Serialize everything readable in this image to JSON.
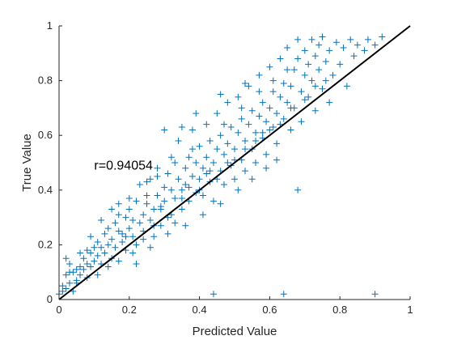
{
  "chart_data": {
    "type": "scatter",
    "title": "",
    "xlabel": "Predicted Value",
    "ylabel": "True Value",
    "xlim": [
      0,
      1
    ],
    "ylim": [
      0,
      1
    ],
    "xticks": [
      0,
      0.2,
      0.4,
      0.6,
      0.8,
      1
    ],
    "xtick_labels": [
      "0",
      "0.2",
      "0.4",
      "0.6",
      "0.8",
      "1"
    ],
    "yticks": [
      0,
      0.2,
      0.4,
      0.6,
      0.8,
      1
    ],
    "ytick_labels": [
      "0",
      "0.2",
      "0.4",
      "0.6",
      "0.8",
      "1"
    ],
    "grid": false,
    "annotation": {
      "text": "r=0.94054",
      "x": 0.1,
      "y": 0.49
    },
    "marker": "+",
    "marker_color": "#0072BD",
    "reference_line": {
      "x": [
        0,
        1
      ],
      "y": [
        0,
        1
      ],
      "color": "#000000"
    },
    "series": [
      {
        "points": [
          [
            0.0,
            0.02
          ],
          [
            0.01,
            0.03
          ],
          [
            0.01,
            0.05
          ],
          [
            0.02,
            0.04
          ],
          [
            0.02,
            0.09
          ],
          [
            0.03,
            0.06
          ],
          [
            0.03,
            0.13
          ],
          [
            0.04,
            0.1
          ],
          [
            0.04,
            0.03
          ],
          [
            0.05,
            0.11
          ],
          [
            0.05,
            0.07
          ],
          [
            0.06,
            0.12
          ],
          [
            0.06,
            0.09
          ],
          [
            0.07,
            0.15
          ],
          [
            0.07,
            0.11
          ],
          [
            0.08,
            0.13
          ],
          [
            0.08,
            0.08
          ],
          [
            0.09,
            0.17
          ],
          [
            0.09,
            0.12
          ],
          [
            0.1,
            0.14
          ],
          [
            0.1,
            0.19
          ],
          [
            0.11,
            0.16
          ],
          [
            0.11,
            0.21
          ],
          [
            0.12,
            0.13
          ],
          [
            0.12,
            0.19
          ],
          [
            0.13,
            0.24
          ],
          [
            0.13,
            0.17
          ],
          [
            0.14,
            0.2
          ],
          [
            0.14,
            0.26
          ],
          [
            0.15,
            0.15
          ],
          [
            0.15,
            0.22
          ],
          [
            0.16,
            0.28
          ],
          [
            0.16,
            0.19
          ],
          [
            0.17,
            0.25
          ],
          [
            0.17,
            0.31
          ],
          [
            0.18,
            0.21
          ],
          [
            0.18,
            0.24
          ],
          [
            0.19,
            0.3
          ],
          [
            0.19,
            0.18
          ],
          [
            0.2,
            0.26
          ],
          [
            0.2,
            0.33
          ],
          [
            0.21,
            0.23
          ],
          [
            0.21,
            0.29
          ],
          [
            0.22,
            0.36
          ],
          [
            0.22,
            0.2
          ],
          [
            0.23,
            0.28
          ],
          [
            0.23,
            0.42
          ],
          [
            0.24,
            0.31
          ],
          [
            0.24,
            0.25
          ],
          [
            0.25,
            0.35
          ],
          [
            0.25,
            0.38
          ],
          [
            0.26,
            0.29
          ],
          [
            0.26,
            0.44
          ],
          [
            0.27,
            0.33
          ],
          [
            0.27,
            0.23
          ],
          [
            0.28,
            0.38
          ],
          [
            0.28,
            0.48
          ],
          [
            0.29,
            0.34
          ],
          [
            0.29,
            0.27
          ],
          [
            0.3,
            0.41
          ],
          [
            0.3,
            0.36
          ],
          [
            0.31,
            0.46
          ],
          [
            0.31,
            0.3
          ],
          [
            0.32,
            0.4
          ],
          [
            0.32,
            0.52
          ],
          [
            0.33,
            0.37
          ],
          [
            0.33,
            0.28
          ],
          [
            0.34,
            0.44
          ],
          [
            0.34,
            0.58
          ],
          [
            0.35,
            0.4
          ],
          [
            0.35,
            0.33
          ],
          [
            0.36,
            0.48
          ],
          [
            0.36,
            0.42
          ],
          [
            0.37,
            0.36
          ],
          [
            0.37,
            0.52
          ],
          [
            0.38,
            0.45
          ],
          [
            0.38,
            0.62
          ],
          [
            0.39,
            0.39
          ],
          [
            0.39,
            0.5
          ],
          [
            0.4,
            0.44
          ],
          [
            0.4,
            0.56
          ],
          [
            0.41,
            0.38
          ],
          [
            0.41,
            0.48
          ],
          [
            0.42,
            0.52
          ],
          [
            0.42,
            0.64
          ],
          [
            0.43,
            0.43
          ],
          [
            0.43,
            0.58
          ],
          [
            0.44,
            0.36
          ],
          [
            0.44,
            0.5
          ],
          [
            0.45,
            0.55
          ],
          [
            0.45,
            0.68
          ],
          [
            0.46,
            0.47
          ],
          [
            0.46,
            0.6
          ],
          [
            0.47,
            0.42
          ],
          [
            0.47,
            0.53
          ],
          [
            0.48,
            0.57
          ],
          [
            0.48,
            0.72
          ],
          [
            0.49,
            0.49
          ],
          [
            0.49,
            0.63
          ],
          [
            0.5,
            0.44
          ],
          [
            0.5,
            0.55
          ],
          [
            0.51,
            0.61
          ],
          [
            0.51,
            0.74
          ],
          [
            0.52,
            0.51
          ],
          [
            0.52,
            0.66
          ],
          [
            0.53,
            0.58
          ],
          [
            0.53,
            0.47
          ],
          [
            0.54,
            0.64
          ],
          [
            0.54,
            0.78
          ],
          [
            0.55,
            0.55
          ],
          [
            0.55,
            0.69
          ],
          [
            0.56,
            0.61
          ],
          [
            0.56,
            0.5
          ],
          [
            0.57,
            0.67
          ],
          [
            0.57,
            0.82
          ],
          [
            0.58,
            0.59
          ],
          [
            0.58,
            0.72
          ],
          [
            0.59,
            0.65
          ],
          [
            0.59,
            0.53
          ],
          [
            0.6,
            0.7
          ],
          [
            0.6,
            0.85
          ],
          [
            0.61,
            0.63
          ],
          [
            0.61,
            0.76
          ],
          [
            0.62,
            0.68
          ],
          [
            0.62,
            0.57
          ],
          [
            0.63,
            0.74
          ],
          [
            0.63,
            0.88
          ],
          [
            0.64,
            0.66
          ],
          [
            0.64,
            0.79
          ],
          [
            0.65,
            0.72
          ],
          [
            0.65,
            0.92
          ],
          [
            0.66,
            0.78
          ],
          [
            0.66,
            0.62
          ],
          [
            0.67,
            0.84
          ],
          [
            0.67,
            0.7
          ],
          [
            0.68,
            0.88
          ],
          [
            0.68,
            0.95
          ],
          [
            0.69,
            0.76
          ],
          [
            0.69,
            0.65
          ],
          [
            0.7,
            0.82
          ],
          [
            0.7,
            0.91
          ],
          [
            0.71,
            0.74
          ],
          [
            0.71,
            0.86
          ],
          [
            0.72,
            0.8
          ],
          [
            0.72,
            0.95
          ],
          [
            0.73,
            0.69
          ],
          [
            0.73,
            0.89
          ],
          [
            0.74,
            0.84
          ],
          [
            0.74,
            0.93
          ],
          [
            0.75,
            0.77
          ],
          [
            0.75,
            0.96
          ],
          [
            0.76,
            0.87
          ],
          [
            0.77,
            0.72
          ],
          [
            0.77,
            0.91
          ],
          [
            0.78,
            0.82
          ],
          [
            0.79,
            0.94
          ],
          [
            0.8,
            0.86
          ],
          [
            0.81,
            0.92
          ],
          [
            0.82,
            0.78
          ],
          [
            0.83,
            0.95
          ],
          [
            0.84,
            0.89
          ],
          [
            0.85,
            0.93
          ],
          [
            0.87,
            0.91
          ],
          [
            0.88,
            0.95
          ],
          [
            0.9,
            0.93
          ],
          [
            0.92,
            0.96
          ],
          [
            0.68,
            0.4
          ],
          [
            0.9,
            0.02
          ],
          [
            0.64,
            0.02
          ],
          [
            0.44,
            0.02
          ],
          [
            0.02,
            0.15
          ],
          [
            0.05,
            0.06
          ],
          [
            0.08,
            0.18
          ],
          [
            0.11,
            0.09
          ],
          [
            0.14,
            0.12
          ],
          [
            0.17,
            0.14
          ],
          [
            0.19,
            0.23
          ],
          [
            0.21,
            0.17
          ],
          [
            0.24,
            0.22
          ],
          [
            0.27,
            0.27
          ],
          [
            0.29,
            0.33
          ],
          [
            0.32,
            0.31
          ],
          [
            0.35,
            0.37
          ],
          [
            0.37,
            0.41
          ],
          [
            0.4,
            0.4
          ],
          [
            0.42,
            0.46
          ],
          [
            0.45,
            0.44
          ],
          [
            0.48,
            0.5
          ],
          [
            0.5,
            0.51
          ],
          [
            0.53,
            0.55
          ],
          [
            0.56,
            0.58
          ],
          [
            0.58,
            0.61
          ],
          [
            0.6,
            0.62
          ],
          [
            0.63,
            0.64
          ],
          [
            0.66,
            0.7
          ],
          [
            0.7,
            0.73
          ],
          [
            0.73,
            0.78
          ],
          [
            0.76,
            0.8
          ],
          [
            0.35,
            0.63
          ],
          [
            0.46,
            0.75
          ],
          [
            0.3,
            0.62
          ],
          [
            0.53,
            0.79
          ],
          [
            0.39,
            0.68
          ],
          [
            0.43,
            0.47
          ],
          [
            0.22,
            0.13
          ],
          [
            0.26,
            0.19
          ],
          [
            0.31,
            0.24
          ],
          [
            0.36,
            0.27
          ],
          [
            0.41,
            0.31
          ],
          [
            0.46,
            0.35
          ],
          [
            0.51,
            0.4
          ],
          [
            0.55,
            0.44
          ],
          [
            0.59,
            0.48
          ],
          [
            0.62,
            0.51
          ],
          [
            0.15,
            0.33
          ],
          [
            0.2,
            0.37
          ],
          [
            0.25,
            0.43
          ],
          [
            0.28,
            0.45
          ],
          [
            0.33,
            0.5
          ],
          [
            0.38,
            0.55
          ],
          [
            0.12,
            0.29
          ],
          [
            0.17,
            0.35
          ],
          [
            0.09,
            0.23
          ],
          [
            0.06,
            0.17
          ],
          [
            0.03,
            0.1
          ],
          [
            0.47,
            0.64
          ],
          [
            0.52,
            0.7
          ],
          [
            0.57,
            0.76
          ],
          [
            0.61,
            0.8
          ],
          [
            0.65,
            0.84
          ]
        ]
      }
    ]
  }
}
